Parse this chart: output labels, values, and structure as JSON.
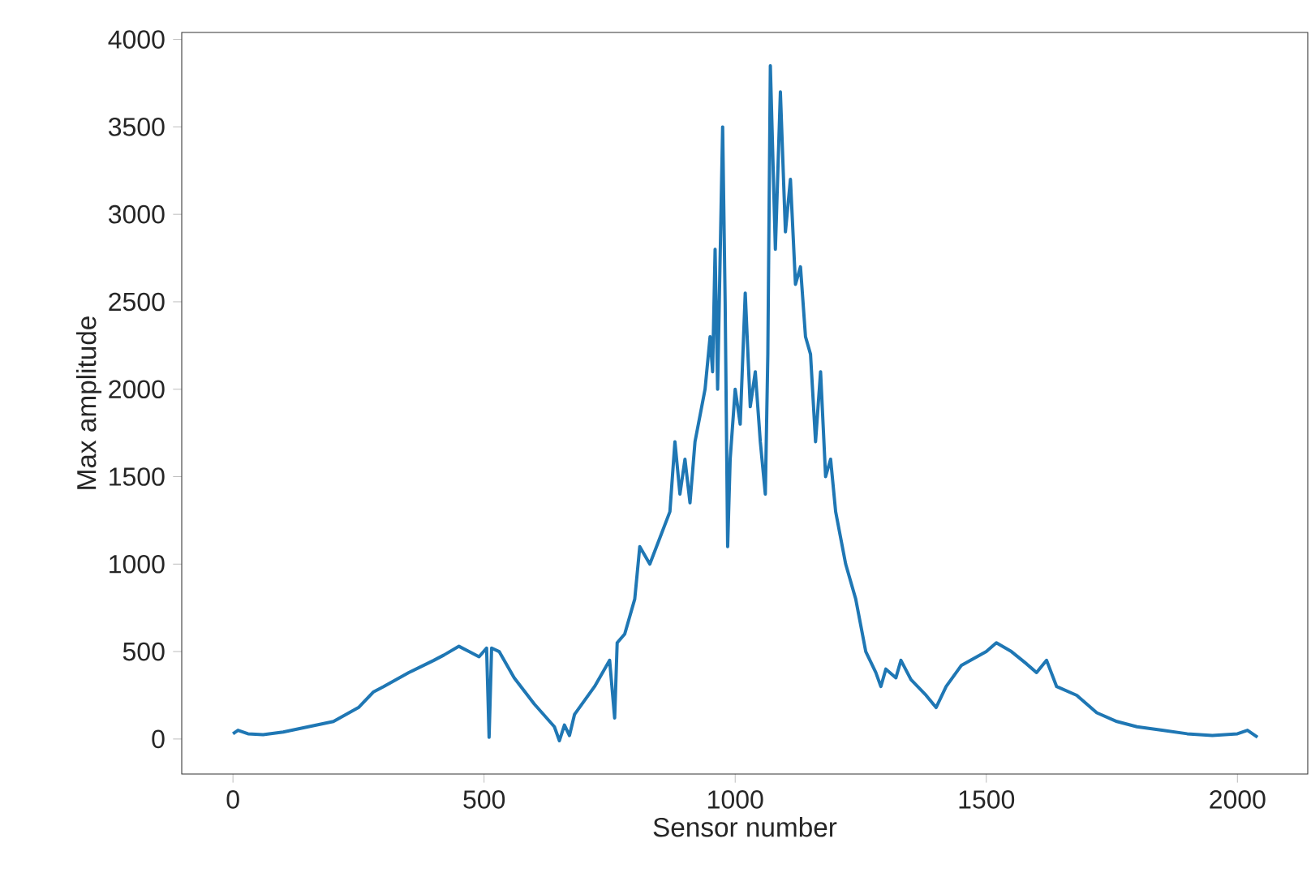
{
  "chart_data": {
    "type": "line",
    "xlabel": "Sensor number",
    "ylabel": "Max amplitude",
    "color": "#1f77b4",
    "grid": false,
    "xlim": [
      -102,
      2140
    ],
    "ylim": [
      -200,
      4040
    ],
    "xticks": [
      0,
      500,
      1000,
      1500,
      2000
    ],
    "yticks": [
      0,
      500,
      1000,
      1500,
      2000,
      2500,
      3000,
      3500,
      4000
    ],
    "x": [
      0,
      10,
      30,
      60,
      100,
      150,
      200,
      250,
      280,
      300,
      350,
      400,
      420,
      450,
      470,
      490,
      505,
      510,
      515,
      530,
      560,
      600,
      640,
      650,
      660,
      670,
      680,
      720,
      750,
      760,
      765,
      780,
      800,
      810,
      830,
      850,
      870,
      880,
      890,
      900,
      910,
      920,
      940,
      950,
      955,
      960,
      965,
      975,
      980,
      985,
      990,
      1000,
      1010,
      1020,
      1030,
      1040,
      1050,
      1060,
      1065,
      1070,
      1080,
      1090,
      1100,
      1110,
      1120,
      1130,
      1140,
      1150,
      1160,
      1170,
      1180,
      1190,
      1200,
      1220,
      1240,
      1260,
      1280,
      1290,
      1300,
      1320,
      1330,
      1350,
      1380,
      1400,
      1420,
      1450,
      1500,
      1520,
      1550,
      1580,
      1600,
      1620,
      1640,
      1680,
      1720,
      1760,
      1800,
      1850,
      1900,
      1950,
      2000,
      2020,
      2040
    ],
    "values": [
      30,
      50,
      30,
      25,
      40,
      70,
      100,
      180,
      270,
      300,
      380,
      450,
      480,
      530,
      500,
      470,
      520,
      10,
      520,
      500,
      350,
      200,
      70,
      -10,
      80,
      20,
      140,
      300,
      450,
      120,
      550,
      600,
      800,
      1100,
      1000,
      1150,
      1300,
      1700,
      1400,
      1600,
      1350,
      1700,
      2000,
      2300,
      2100,
      2800,
      2000,
      3500,
      2500,
      1100,
      1600,
      2000,
      1800,
      2550,
      1900,
      2100,
      1700,
      1400,
      2200,
      3850,
      2800,
      3700,
      2900,
      3200,
      2600,
      2700,
      2300,
      2200,
      1700,
      2100,
      1500,
      1600,
      1300,
      1000,
      800,
      500,
      380,
      300,
      400,
      350,
      450,
      340,
      250,
      180,
      300,
      420,
      500,
      550,
      500,
      430,
      380,
      450,
      300,
      250,
      150,
      100,
      70,
      50,
      30,
      20,
      30,
      50,
      10
    ]
  }
}
